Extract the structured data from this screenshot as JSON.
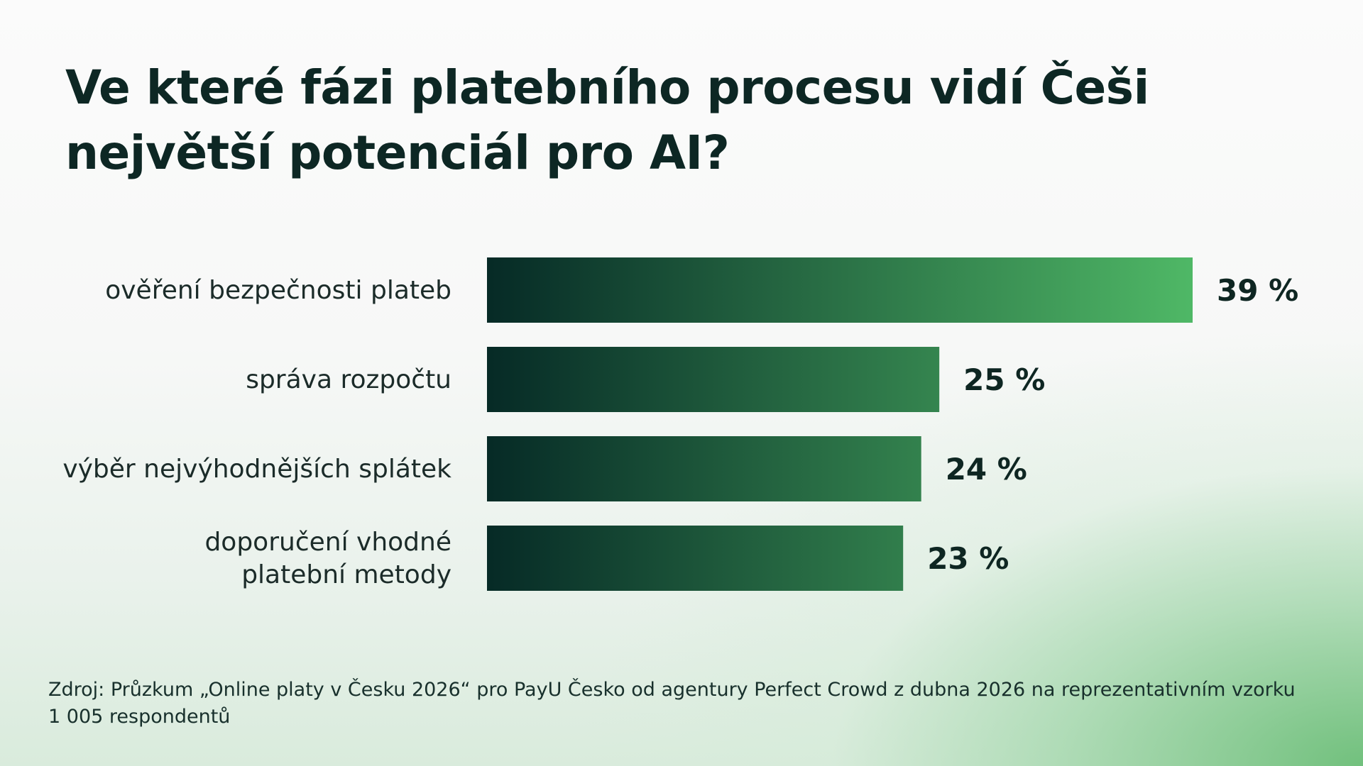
{
  "chart_data": {
    "type": "bar",
    "orientation": "horizontal",
    "title": "Ve které fázi platebního procesu vidí Češi největší potenciál pro AI?",
    "categories": [
      "ověření bezpečnosti plateb",
      "správa rozpočtu",
      "výběr nejvýhodnějších splátek",
      "doporučení vhodné platební metody"
    ],
    "values": [
      39,
      25,
      24,
      23
    ],
    "value_labels": [
      "39 %",
      "25 %",
      "24 %",
      "23 %"
    ],
    "unit": "%",
    "xlim": [
      0,
      39
    ],
    "grid": false,
    "legend": "none",
    "colors": {
      "bar_start": "#062a26",
      "bar_end": "#4fb866",
      "text": "#0e2622"
    }
  },
  "footer": {
    "source": "Zdroj: Průzkum „Online platy v Česku 2026“ pro PayU Česko od agentury Perfect Crowd z dubna 2026 na reprezentativním vzorku 1 005 respondentů"
  }
}
